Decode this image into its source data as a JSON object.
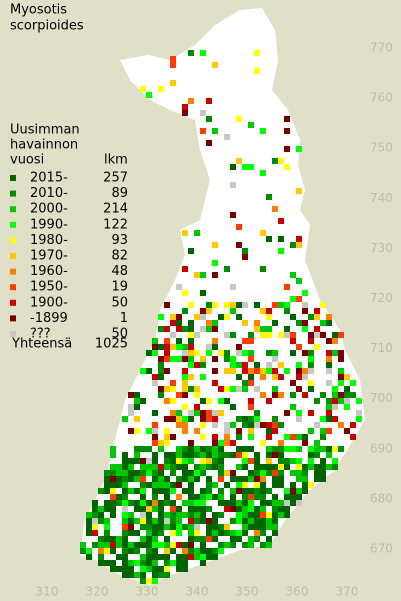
{
  "title": [
    "Myosotis",
    "scorpioides"
  ],
  "legend": {
    "heading": [
      "Uusimman",
      "havainnon",
      "vuosi"
    ],
    "count_heading": "lkm",
    "items": [
      {
        "label": "2015-",
        "count": 257,
        "color": "#006400"
      },
      {
        "label": "2010-",
        "count": 89,
        "color": "#008c00"
      },
      {
        "label": "2000-",
        "count": 214,
        "color": "#00c800"
      },
      {
        "label": "1990-",
        "count": 122,
        "color": "#00ff00"
      },
      {
        "label": "1980-",
        "count": 93,
        "color": "#ffff00"
      },
      {
        "label": "1970-",
        "count": 82,
        "color": "#ffc800"
      },
      {
        "label": "1960-",
        "count": 48,
        "color": "#ff8000"
      },
      {
        "label": "1950-",
        "count": 19,
        "color": "#ff3c00"
      },
      {
        "label": "1900-",
        "count": 50,
        "color": "#c80000"
      },
      {
        "label": "-1899",
        "count": 1,
        "color": "#780000"
      },
      {
        "label": "???",
        "count": 50,
        "color": "#c8c8c8"
      }
    ],
    "total_label": "Yhteensä",
    "total": 1025
  },
  "x_labels": [
    310,
    320,
    330,
    340,
    350,
    360,
    370
  ],
  "y_labels": [
    770,
    760,
    750,
    740,
    730,
    720,
    710,
    700,
    690,
    680,
    670
  ]
}
